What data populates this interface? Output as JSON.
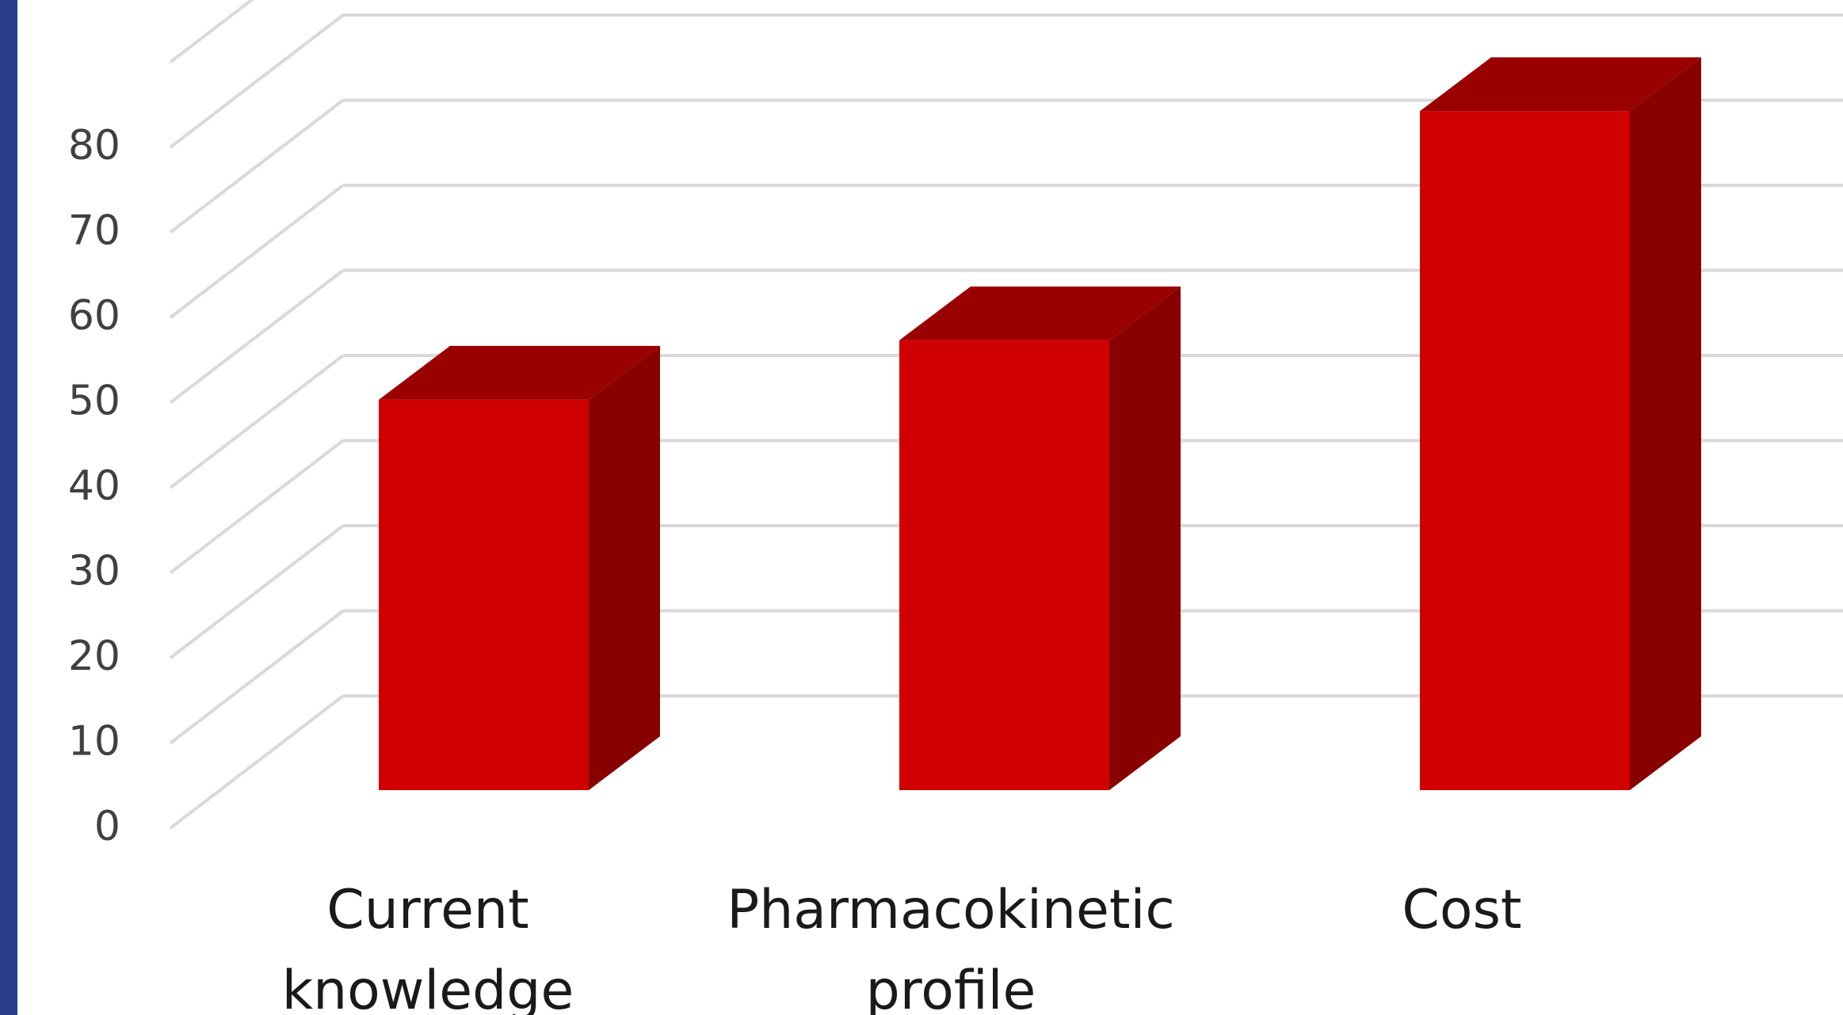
{
  "colors": {
    "side_bar": "#2a3f8a",
    "gridline": "#d9d9d9",
    "bar_front": "#d00000",
    "bar_top": "#9a0000",
    "bar_side": "#880000"
  },
  "chart_data": {
    "type": "bar",
    "style": "3d-column",
    "title": "",
    "xlabel": "",
    "ylabel": "",
    "categories": [
      [
        "Current",
        "knowledge"
      ],
      [
        "Pharmacokinetic",
        "profile"
      ],
      [
        "Cost"
      ]
    ],
    "values": [
      46,
      53,
      80
    ],
    "ylim": [
      0,
      80
    ],
    "yticks": [
      "0",
      "10",
      "20",
      "30",
      "40",
      "50",
      "60",
      "70",
      "80"
    ],
    "grid": true,
    "legend": "none"
  }
}
